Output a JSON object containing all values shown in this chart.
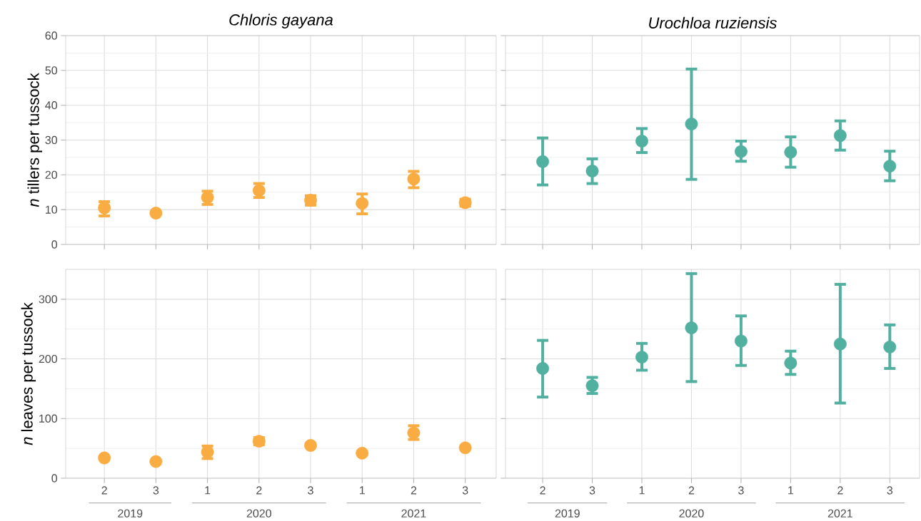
{
  "chart_data": [
    {
      "type": "scatter",
      "title": "Chloris gayana",
      "ylabel": "*n* tillers per tussock",
      "categories": [
        "2",
        "3",
        "1",
        "2",
        "3",
        "1",
        "2",
        "3"
      ],
      "color": "#f8ac42",
      "grid": true,
      "tick_labels": "y",
      "ylim": [
        0,
        60
      ],
      "yticks": [
        0,
        10,
        20,
        30,
        40,
        50,
        60
      ],
      "values": [
        10.5,
        9.0,
        13.5,
        15.5,
        12.7,
        11.8,
        18.8,
        12.0
      ],
      "errors": [
        [
          8.2,
          12.3
        ],
        null,
        [
          11.5,
          15.3
        ],
        [
          13.5,
          17.5
        ],
        [
          11.3,
          14.0
        ],
        [
          8.8,
          14.5
        ],
        [
          16.3,
          21.0
        ],
        [
          11.0,
          13.0
        ]
      ]
    },
    {
      "type": "scatter",
      "title": "Urochloa ruziensis",
      "categories": [
        "2",
        "3",
        "1",
        "2",
        "3",
        "1",
        "2",
        "3"
      ],
      "color": "#52b0a0",
      "grid": true,
      "tick_labels": false,
      "ylim": [
        0,
        60
      ],
      "yticks": [
        0,
        10,
        20,
        30,
        40,
        50,
        60
      ],
      "values": [
        23.8,
        21.1,
        29.7,
        34.6,
        26.7,
        26.5,
        31.3,
        22.5
      ],
      "errors": [
        [
          17.1,
          30.6
        ],
        [
          17.5,
          24.6
        ],
        [
          26.4,
          33.3
        ],
        [
          18.7,
          50.4
        ],
        [
          23.9,
          29.7
        ],
        [
          22.2,
          30.9
        ],
        [
          27.1,
          35.5
        ],
        [
          18.3,
          26.8
        ]
      ]
    },
    {
      "type": "scatter",
      "ylabel": "*n* leaves per tussock",
      "categories": [
        "2",
        "3",
        "1",
        "2",
        "3",
        "1",
        "2",
        "3"
      ],
      "color": "#f8ac42",
      "grid": true,
      "ylim": [
        0,
        350
      ],
      "yticks": [
        0,
        100,
        200,
        300
      ],
      "annotations": [
        "2019",
        "2020",
        "2021"
      ],
      "values": [
        34,
        28,
        44,
        62,
        55,
        42,
        76,
        51
      ],
      "errors": [
        null,
        null,
        [
          33,
          54
        ],
        [
          56,
          68
        ],
        null,
        null,
        [
          65,
          88
        ],
        null
      ]
    },
    {
      "type": "scatter",
      "categories": [
        "2",
        "3",
        "1",
        "2",
        "3",
        "1",
        "2",
        "3"
      ],
      "color": "#52b0a0",
      "grid": true,
      "tick_labels": "x",
      "ylim": [
        0,
        350
      ],
      "yticks": [
        0,
        100,
        200,
        300
      ],
      "annotations": [
        "2019",
        "2020",
        "2021"
      ],
      "values": [
        184,
        155,
        203,
        252,
        230,
        193,
        225,
        220
      ],
      "errors": [
        [
          136,
          231
        ],
        [
          142,
          169
        ],
        [
          181,
          226
        ],
        [
          162,
          343
        ],
        [
          189,
          272
        ],
        [
          174,
          213
        ],
        [
          126,
          325
        ],
        [
          184,
          257
        ]
      ]
    }
  ]
}
